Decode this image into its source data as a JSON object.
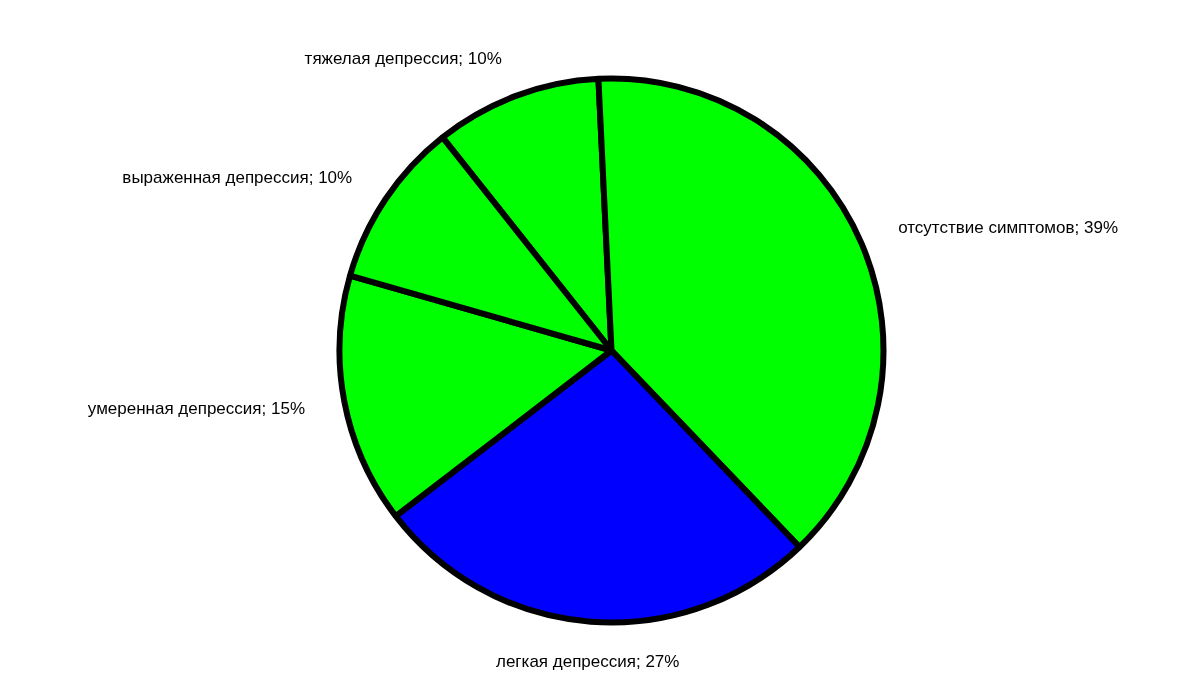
{
  "chart_data": {
    "type": "pie",
    "categories": [
      "тяжелая депрессия",
      "отсутствие симптомов",
      "легкая депрессия",
      "умеренная депрессия",
      "выраженная депрессия"
    ],
    "values": [
      10,
      39,
      27,
      15,
      10
    ],
    "value_labels": [
      "10%",
      "39%",
      "27%",
      "15%",
      "10%"
    ],
    "colors": [
      "#00ff00",
      "#00ff00",
      "#0000ff",
      "#00ff00",
      "#00ff00"
    ],
    "legend": false
  }
}
